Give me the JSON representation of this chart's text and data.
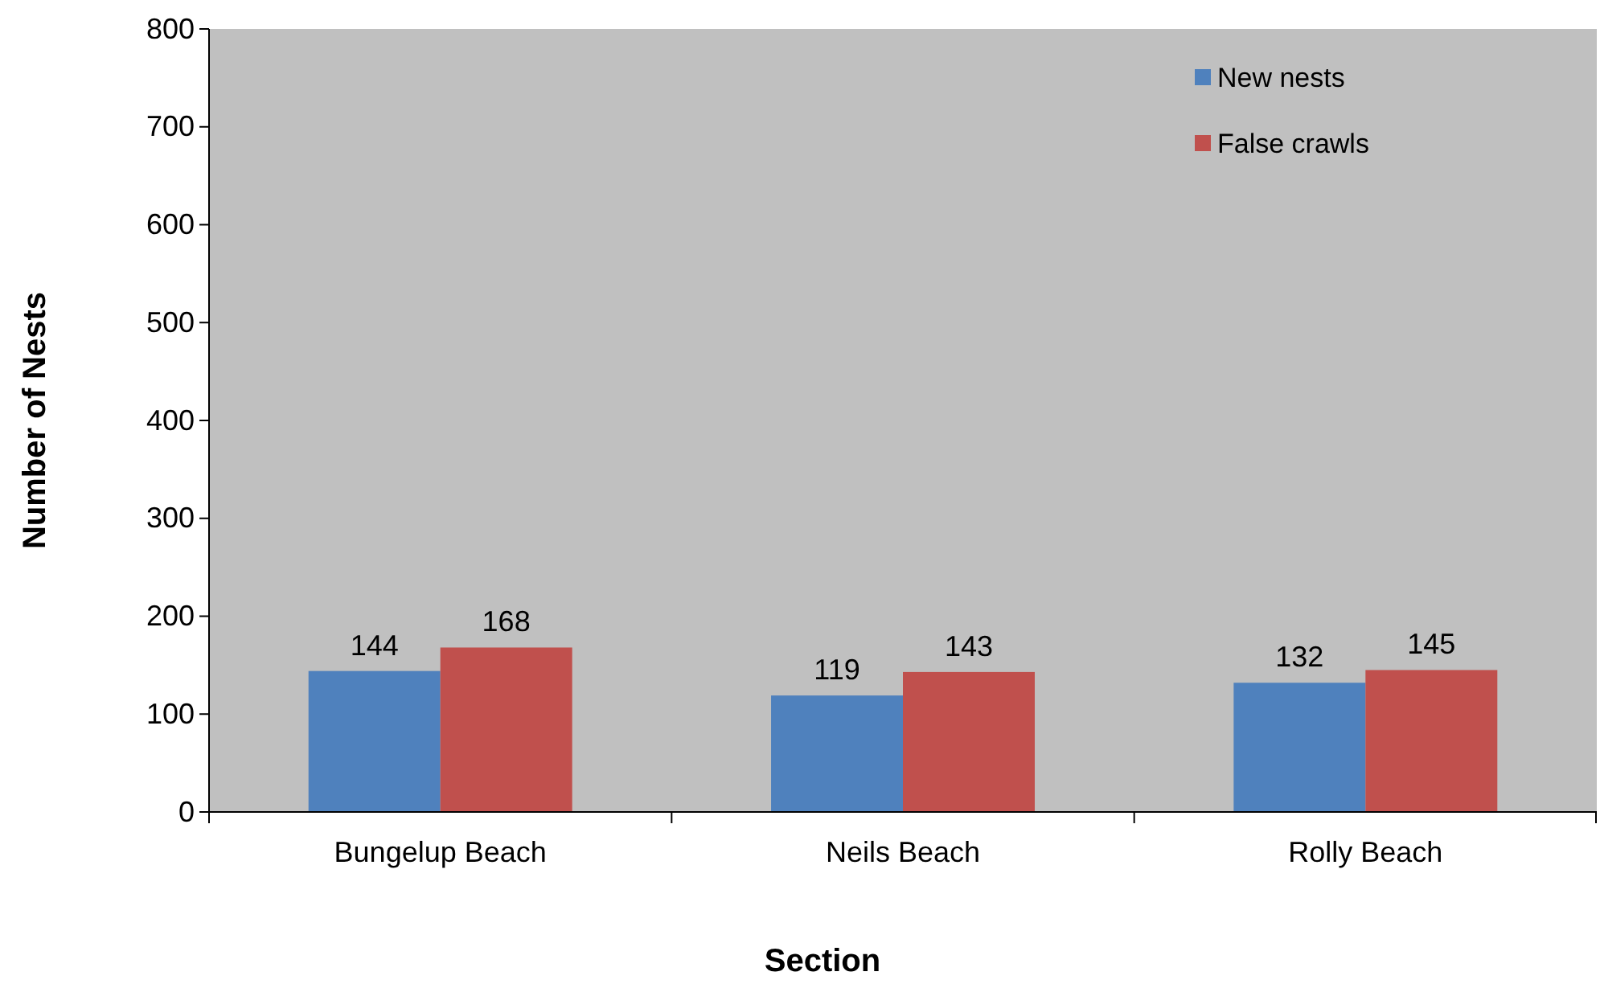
{
  "chart_data": {
    "type": "bar",
    "xlabel": "Section",
    "ylabel": "Number of Nests",
    "categories": [
      "Bungelup Beach",
      "Neils Beach",
      "Rolly Beach"
    ],
    "series": [
      {
        "name": "New nests",
        "color": "#4f81bd",
        "values": [
          144,
          119,
          132
        ]
      },
      {
        "name": "False crawls",
        "color": "#c0504d",
        "values": [
          168,
          143,
          145
        ]
      }
    ],
    "ylim": [
      0,
      800
    ],
    "yticks": [
      0,
      100,
      200,
      300,
      400,
      500,
      600,
      700,
      800
    ],
    "grid": false,
    "legend": "top right",
    "data_labels": true
  }
}
